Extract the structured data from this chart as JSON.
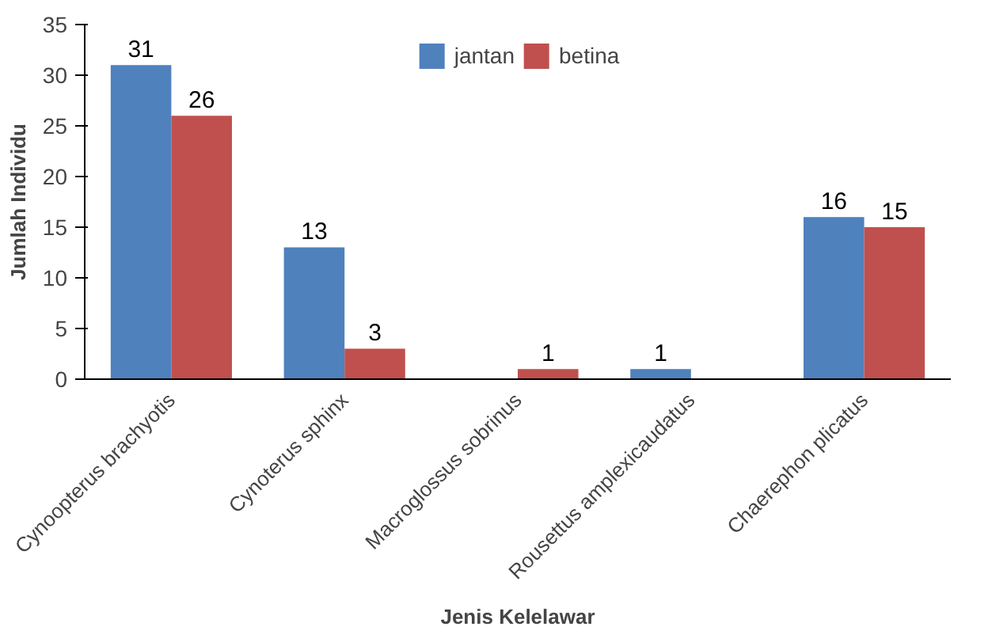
{
  "chart_data": {
    "type": "bar",
    "xlabel": "Jenis Kelelawar",
    "ylabel": "Jumlah Individu",
    "categories": [
      "Cynoopterus brachyotis",
      "Cynoterus sphinx",
      "Macroglossus sobrinus",
      "Rousettus amplexicaudatus",
      "Chaerephon plicatus"
    ],
    "series": [
      {
        "name": "jantan",
        "color": "#4f81bd",
        "values": [
          31,
          13,
          0,
          1,
          16
        ],
        "value_labels": [
          "31",
          "13",
          null,
          "1",
          "16"
        ]
      },
      {
        "name": "betina",
        "color": "#c0504d",
        "values": [
          26,
          3,
          1,
          0,
          15
        ],
        "value_labels": [
          "26",
          "3",
          "1",
          null,
          "15"
        ]
      }
    ],
    "ylim": [
      0,
      35
    ],
    "yticks": [
      0,
      5,
      10,
      15,
      20,
      25,
      30,
      35
    ],
    "grid": false,
    "legend": "top"
  }
}
